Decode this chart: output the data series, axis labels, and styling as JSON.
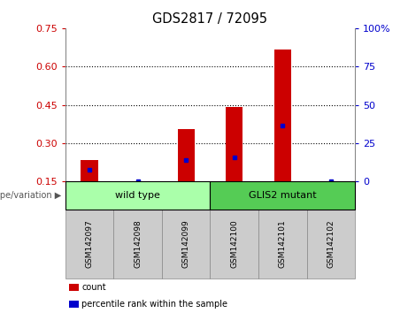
{
  "title": "GDS2817 / 72095",
  "samples": [
    "GSM142097",
    "GSM142098",
    "GSM142099",
    "GSM142100",
    "GSM142101",
    "GSM142102"
  ],
  "bar_heights": [
    0.235,
    0.15,
    0.355,
    0.44,
    0.665,
    0.15
  ],
  "percentile_values": [
    0.195,
    0.15,
    0.235,
    0.245,
    0.37,
    0.15
  ],
  "ylim_left": [
    0.15,
    0.75
  ],
  "ylim_right": [
    0,
    100
  ],
  "yticks_left": [
    0.15,
    0.3,
    0.45,
    0.6,
    0.75
  ],
  "ytick_labels_left": [
    "0.15",
    "0.30",
    "0.45",
    "0.60",
    "0.75"
  ],
  "yticks_right": [
    0,
    25,
    50,
    75,
    100
  ],
  "ytick_labels_right": [
    "0",
    "25",
    "50",
    "75",
    "100%"
  ],
  "bar_color": "#cc0000",
  "percentile_color": "#0000cc",
  "bar_width": 0.35,
  "groups": [
    {
      "label": "wild type",
      "start": 0,
      "end": 3,
      "color": "#aaffaa"
    },
    {
      "label": "GLIS2 mutant",
      "start": 3,
      "end": 6,
      "color": "#55cc55"
    }
  ],
  "genotype_label": "genotype/variation",
  "legend_items": [
    {
      "label": "count",
      "color": "#cc0000"
    },
    {
      "label": "percentile rank within the sample",
      "color": "#0000cc"
    }
  ],
  "grid_color": "black",
  "tick_label_color_left": "#cc0000",
  "tick_label_color_right": "#0000cc",
  "sample_bg_color": "#cccccc",
  "wild_type_color": "#aaffaa",
  "mutant_color": "#55cc55"
}
